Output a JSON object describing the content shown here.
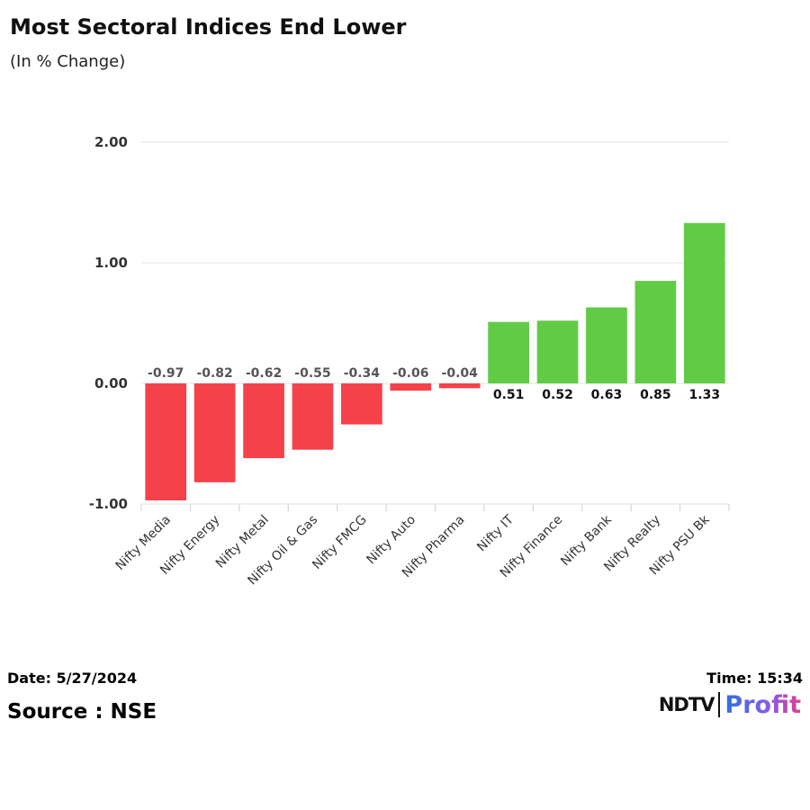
{
  "header": {
    "title": "Most Sectoral Indices End Lower",
    "subtitle": "(In % Change)"
  },
  "footer": {
    "date": "Date: 5/27/2024",
    "time": "Time: 15:34",
    "source": "Source : NSE",
    "logo": {
      "ndtv": "NDTV",
      "profit": "Profit"
    }
  },
  "colors": {
    "negative": "#f5424a",
    "positive": "#61cb46",
    "negative_label": "#555555",
    "positive_label": "#111111",
    "grid": "#e3e3e3"
  },
  "chart_data": {
    "type": "bar",
    "title": "Most Sectoral Indices End Lower",
    "subtitle": "(In % Change)",
    "xlabel": "",
    "ylabel": "",
    "ylim": [
      -1.0,
      2.0
    ],
    "yticks": [
      2.0,
      1.0,
      0.0,
      -1.0
    ],
    "ytick_labels": [
      "2.00",
      "1.00",
      "0.00",
      "-1.00"
    ],
    "grid": true,
    "categories": [
      "Nifty Media",
      "Nifty Energy",
      "Nifty Metal",
      "Nifty Oil & Gas",
      "Nifty FMCG",
      "Nifty Auto",
      "Nifty Pharma",
      "Nifty IT",
      "Nifty Finance",
      "Nifty Bank",
      "Nifty Realty",
      "Nifty PSU Bk"
    ],
    "values": [
      -0.97,
      -0.82,
      -0.62,
      -0.55,
      -0.34,
      -0.06,
      -0.04,
      0.51,
      0.52,
      0.63,
      0.85,
      1.33
    ],
    "value_labels": [
      "-0.97",
      "-0.82",
      "-0.62",
      "-0.55",
      "-0.34",
      "-0.06",
      "-0.04",
      "0.51",
      "0.52",
      "0.63",
      "0.85",
      "1.33"
    ]
  }
}
